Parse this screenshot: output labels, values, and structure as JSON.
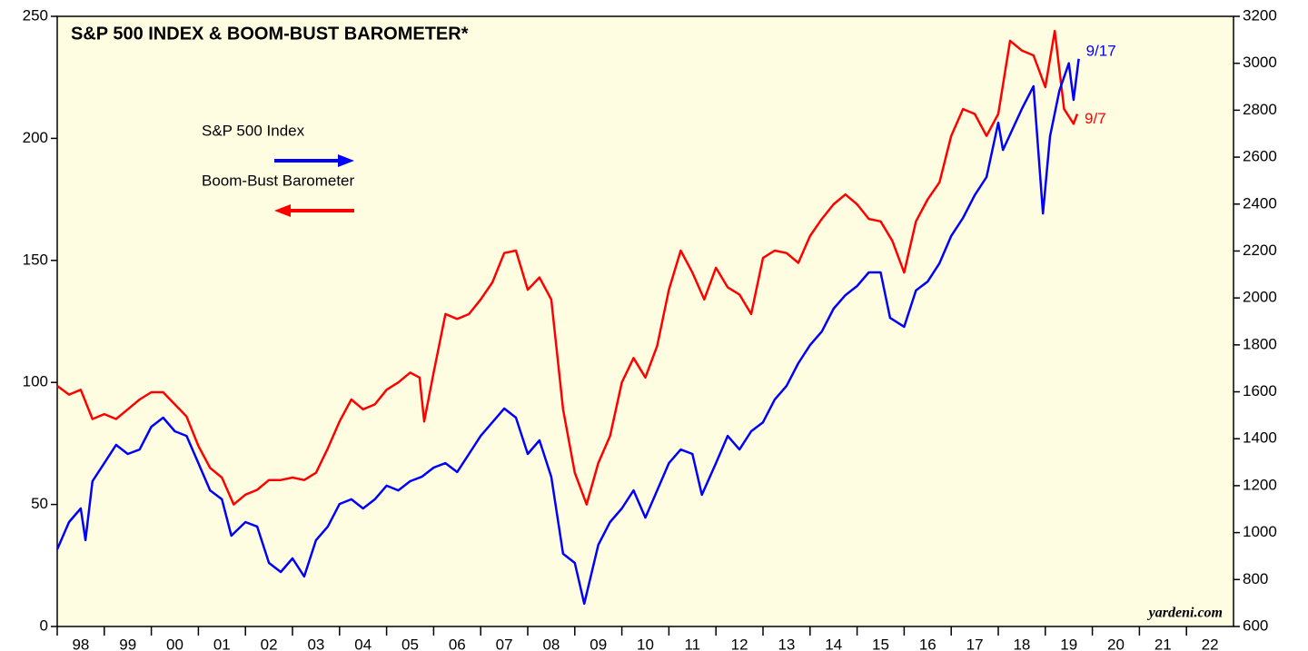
{
  "chart_data": {
    "type": "line",
    "title": "S&P 500 INDEX & BOOM-BUST BAROMETER*",
    "source": "yardeni.com",
    "xlim": [
      1998,
      2023
    ],
    "xticks": [
      {
        "value": 1998,
        "label": "98"
      },
      {
        "value": 1999,
        "label": "99"
      },
      {
        "value": 2000,
        "label": "00"
      },
      {
        "value": 2001,
        "label": "01"
      },
      {
        "value": 2002,
        "label": "02"
      },
      {
        "value": 2003,
        "label": "03"
      },
      {
        "value": 2004,
        "label": "04"
      },
      {
        "value": 2005,
        "label": "05"
      },
      {
        "value": 2006,
        "label": "06"
      },
      {
        "value": 2007,
        "label": "07"
      },
      {
        "value": 2008,
        "label": "08"
      },
      {
        "value": 2009,
        "label": "09"
      },
      {
        "value": 2010,
        "label": "10"
      },
      {
        "value": 2011,
        "label": "11"
      },
      {
        "value": 2012,
        "label": "12"
      },
      {
        "value": 2013,
        "label": "13"
      },
      {
        "value": 2014,
        "label": "14"
      },
      {
        "value": 2015,
        "label": "15"
      },
      {
        "value": 2016,
        "label": "16"
      },
      {
        "value": 2017,
        "label": "17"
      },
      {
        "value": 2018,
        "label": "18"
      },
      {
        "value": 2019,
        "label": "19"
      },
      {
        "value": 2020,
        "label": "20"
      },
      {
        "value": 2021,
        "label": "21"
      },
      {
        "value": 2022,
        "label": "22"
      }
    ],
    "ylim": [
      0,
      250
    ],
    "yticks": [
      0,
      50,
      100,
      150,
      200,
      250
    ],
    "y2lim": [
      600,
      3200
    ],
    "y2ticks": [
      600,
      800,
      1000,
      1200,
      1400,
      1600,
      1800,
      2000,
      2200,
      2400,
      2600,
      2800,
      3000,
      3200
    ],
    "series": [
      {
        "name": "Boom-Bust Barometer",
        "color": "#ff0000",
        "axis": "y",
        "end_label": "9/7",
        "x": [
          1998,
          1998.25,
          1998.5,
          1998.75,
          1999,
          1999.25,
          1999.5,
          1999.75,
          2000,
          2000.25,
          2000.5,
          2000.75,
          2001,
          2001.25,
          2001.5,
          2001.75,
          2002,
          2002.25,
          2002.5,
          2002.75,
          2003,
          2003.25,
          2003.5,
          2003.75,
          2004,
          2004.25,
          2004.5,
          2004.75,
          2005,
          2005.25,
          2005.5,
          2005.7,
          2005.8,
          2006,
          2006.25,
          2006.5,
          2006.75,
          2007,
          2007.25,
          2007.5,
          2007.75,
          2008,
          2008.25,
          2008.5,
          2008.75,
          2009,
          2009.25,
          2009.5,
          2009.75,
          2010,
          2010.25,
          2010.5,
          2010.75,
          2011,
          2011.25,
          2011.5,
          2011.75,
          2012,
          2012.25,
          2012.5,
          2012.75,
          2013,
          2013.25,
          2013.5,
          2013.75,
          2014,
          2014.25,
          2014.5,
          2014.75,
          2015,
          2015.25,
          2015.5,
          2015.75,
          2016,
          2016.25,
          2016.5,
          2016.75,
          2017,
          2017.25,
          2017.5,
          2017.75,
          2018,
          2018.25,
          2018.5,
          2018.75,
          2019,
          2019.2,
          2019.4,
          2019.6,
          2019.68
        ],
        "values": [
          98.6,
          95,
          97,
          85,
          87,
          85,
          89,
          93,
          96,
          96,
          91,
          86,
          74,
          65,
          61,
          50,
          54,
          56,
          60,
          60,
          61,
          60,
          63,
          73,
          84,
          93,
          89,
          91,
          97,
          100,
          104,
          102,
          84,
          104,
          128,
          126,
          128,
          134,
          141,
          153,
          154,
          138,
          143,
          134,
          89,
          63,
          50,
          67,
          78,
          100,
          110,
          102,
          115,
          138,
          154,
          145,
          134,
          147,
          139,
          136,
          128,
          151,
          154,
          153,
          149,
          160,
          167,
          173,
          177,
          173,
          167,
          166,
          158,
          145,
          166,
          175,
          182,
          201,
          212,
          210,
          201,
          210,
          240,
          236,
          234,
          221,
          244,
          212,
          206,
          210
        ]
      },
      {
        "name": "S&P 500 Index",
        "color": "#0000ff",
        "axis": "y2",
        "end_label": "9/17",
        "x": [
          1998,
          1998.25,
          1998.5,
          1998.6,
          1998.75,
          1999,
          1999.25,
          1999.5,
          1999.75,
          2000,
          2000.25,
          2000.5,
          2000.75,
          2001,
          2001.25,
          2001.5,
          2001.7,
          2002,
          2002.25,
          2002.5,
          2002.75,
          2003,
          2003.25,
          2003.5,
          2003.75,
          2004,
          2004.25,
          2004.5,
          2004.75,
          2005,
          2005.25,
          2005.5,
          2005.75,
          2006,
          2006.25,
          2006.5,
          2006.75,
          2007,
          2007.25,
          2007.5,
          2007.75,
          2008,
          2008.25,
          2008.5,
          2008.75,
          2009,
          2009.2,
          2009.5,
          2009.75,
          2010,
          2010.25,
          2010.5,
          2010.75,
          2011,
          2011.25,
          2011.5,
          2011.7,
          2012,
          2012.25,
          2012.5,
          2012.75,
          2013,
          2013.25,
          2013.5,
          2013.75,
          2014,
          2014.25,
          2014.5,
          2014.75,
          2015,
          2015.25,
          2015.5,
          2015.7,
          2016,
          2016.25,
          2016.5,
          2016.75,
          2017,
          2017.25,
          2017.5,
          2017.75,
          2018,
          2018.1,
          2018.5,
          2018.75,
          2018.95,
          2019.1,
          2019.3,
          2019.5,
          2019.6,
          2019.71
        ],
        "values": [
          929,
          1045,
          1103,
          968,
          1219,
          1296,
          1374,
          1335,
          1354,
          1451,
          1490,
          1432,
          1412,
          1296,
          1180,
          1142,
          987,
          1045,
          1026,
          871,
          832,
          890,
          813,
          968,
          1026,
          1122,
          1142,
          1103,
          1142,
          1200,
          1180,
          1219,
          1238,
          1277,
          1296,
          1258,
          1335,
          1412,
          1470,
          1529,
          1490,
          1335,
          1393,
          1238,
          910,
          871,
          697,
          948,
          1045,
          1103,
          1180,
          1064,
          1180,
          1296,
          1354,
          1335,
          1161,
          1296,
          1412,
          1354,
          1432,
          1470,
          1567,
          1625,
          1722,
          1799,
          1857,
          1954,
          2012,
          2051,
          2109,
          2109,
          1915,
          1877,
          2032,
          2070,
          2148,
          2264,
          2341,
          2438,
          2515,
          2747,
          2631,
          2805,
          2902,
          2360,
          2689,
          2883,
          3000,
          2844,
          3019
        ]
      }
    ]
  }
}
